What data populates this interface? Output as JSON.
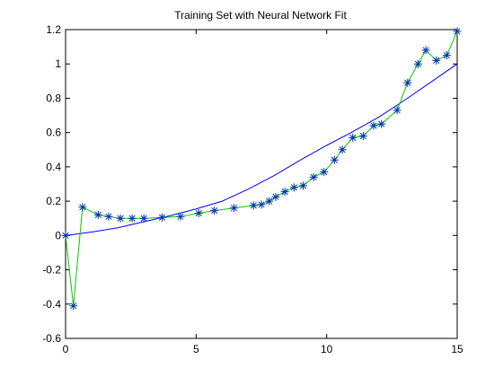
{
  "chart_data": {
    "type": "line",
    "title": "Training Set with Neural Network Fit",
    "xlabel": "",
    "ylabel": "",
    "xlim": [
      0,
      15
    ],
    "ylim": [
      -0.6,
      1.2
    ],
    "xticks": [
      0,
      5,
      10,
      15
    ],
    "yticks": [
      -0.6,
      -0.4,
      -0.2,
      0,
      0.2,
      0.4,
      0.6,
      0.8,
      1,
      1.2
    ],
    "xtick_labels": [
      "0",
      "5",
      "10",
      "15"
    ],
    "ytick_labels": [
      "-0.6",
      "-0.4",
      "-0.2",
      "0",
      "0.2",
      "0.4",
      "0.6",
      "0.8",
      "1",
      "1.2"
    ],
    "grid": false,
    "legend": "none",
    "colors": {
      "training_line": "#00cc00",
      "training_markers": "#0033aa",
      "fit_line": "#0000ff"
    },
    "series": [
      {
        "style": "line-with-star-markers",
        "x": [
          0,
          0.3,
          0.65,
          1.25,
          1.65,
          2.1,
          2.55,
          3.0,
          3.7,
          4.4,
          5.1,
          5.7,
          6.45,
          7.2,
          7.5,
          7.8,
          8.05,
          8.4,
          8.75,
          9.1,
          9.5,
          9.9,
          10.3,
          10.6,
          11.0,
          11.4,
          11.8,
          12.1,
          12.7,
          13.1,
          13.5,
          13.8,
          14.2,
          14.6,
          15.0
        ],
        "y": [
          0.0,
          -0.41,
          0.165,
          0.12,
          0.11,
          0.1,
          0.1,
          0.1,
          0.105,
          0.11,
          0.13,
          0.145,
          0.16,
          0.175,
          0.18,
          0.2,
          0.225,
          0.255,
          0.28,
          0.29,
          0.34,
          0.37,
          0.44,
          0.5,
          0.57,
          0.58,
          0.64,
          0.65,
          0.73,
          0.89,
          1.0,
          1.08,
          1.02,
          1.05,
          1.19
        ]
      },
      {
        "style": "line",
        "x": [
          0,
          1,
          2,
          3,
          4,
          5,
          6,
          7,
          8,
          9,
          10,
          11,
          12,
          13,
          14,
          15
        ],
        "y": [
          0.0,
          0.02,
          0.045,
          0.08,
          0.115,
          0.155,
          0.2,
          0.27,
          0.35,
          0.44,
          0.525,
          0.605,
          0.69,
          0.79,
          0.895,
          1.0
        ]
      }
    ]
  }
}
